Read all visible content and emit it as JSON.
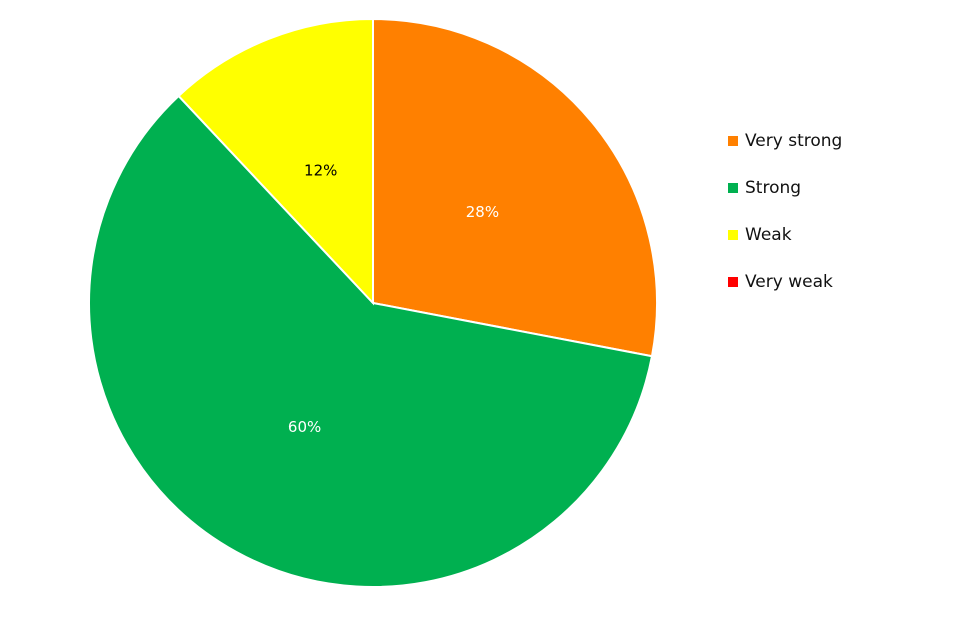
{
  "chart_data": {
    "type": "pie",
    "categories": [
      "Very strong",
      "Strong",
      "Weak",
      "Very weak"
    ],
    "values": [
      28,
      60,
      12,
      0
    ],
    "value_labels": [
      "28%",
      "60%",
      "12%",
      null
    ],
    "colors": [
      "#ff8000",
      "#00b050",
      "#ffff00",
      "#ff0000"
    ],
    "label_colors": [
      "#ffffff",
      "#ffffff",
      "#000000",
      "#000000"
    ],
    "legend": "right"
  }
}
